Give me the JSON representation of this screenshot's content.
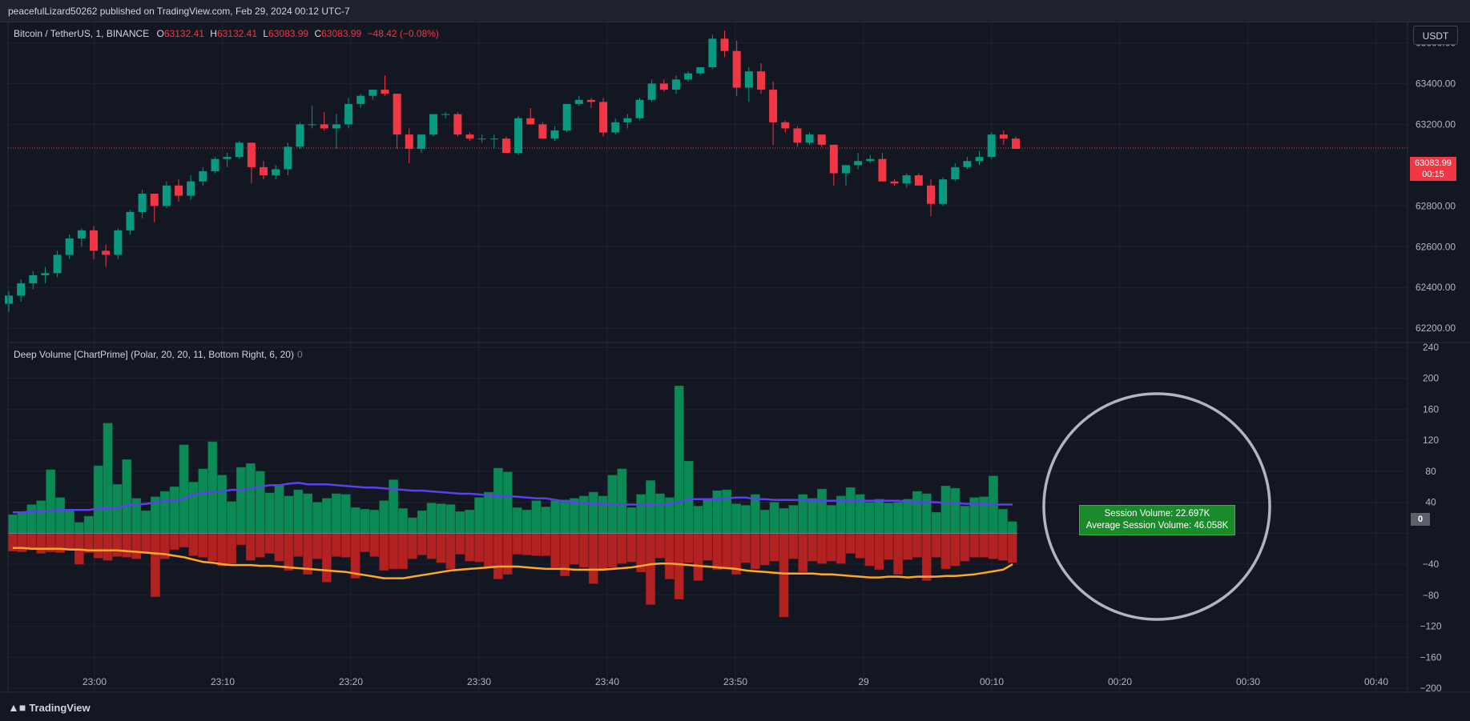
{
  "header": {
    "publisher_line": "peacefulLizard50262 published on TradingView.com, Feb 29, 2024 00:12 UTC-7"
  },
  "symbol_legend": {
    "symbol": "Bitcoin / TetherUS, 1, BINANCE",
    "open_label": "O",
    "open": "63132.41",
    "high_label": "H",
    "high": "63132.41",
    "low_label": "L",
    "low": "63083.99",
    "close_label": "C",
    "close": "63083.99",
    "change": "−48.42 (−0.08%)"
  },
  "indicator_legend": {
    "title": "Deep Volume [ChartPrime] (Polar, 20, 20, 11, Bottom Right, 6, 20)",
    "value": "0"
  },
  "currency_button": "USDT",
  "price_tag": {
    "price": "63083.99",
    "countdown": "00:15"
  },
  "zero_tag": "0",
  "session_box": {
    "line1": "Session Volume: 22.697K",
    "line2": "Average Session Volume: 46.058K"
  },
  "footer": {
    "brand": "TradingView",
    "logo_icon": "tradingview-logo-icon"
  },
  "colors": {
    "up": "#089981",
    "down": "#f23645",
    "background": "#131722",
    "buy_volume": "#0b8a55",
    "sell_volume": "#b22222",
    "buy_avg": "#5b3ff0",
    "sell_avg": "#ffa726"
  },
  "chart_data": [
    {
      "type": "candlestick",
      "title": "Bitcoin / TetherUS, 1, BINANCE",
      "price_axis": {
        "ticks": [
          "63600.00",
          "63400.00",
          "63200.00",
          "62800.00",
          "62600.00",
          "62400.00",
          "62200.00"
        ],
        "tick_values": [
          63600,
          63400,
          63200,
          62800,
          62600,
          62400,
          62200
        ],
        "range": [
          62130,
          63700
        ]
      },
      "time_axis": {
        "ticks": [
          "23:00",
          "23:10",
          "23:20",
          "23:30",
          "23:40",
          "23:50",
          "29",
          "00:10",
          "00:20",
          "00:30",
          "00:40"
        ]
      },
      "last_price": 63083.99,
      "candles_ohlc": [
        [
          62320,
          62380,
          62280,
          62360
        ],
        [
          62360,
          62440,
          62330,
          62420
        ],
        [
          62420,
          62480,
          62390,
          62460
        ],
        [
          62460,
          62500,
          62420,
          62470
        ],
        [
          62470,
          62580,
          62450,
          62560
        ],
        [
          62560,
          62660,
          62540,
          62640
        ],
        [
          62640,
          62690,
          62600,
          62680
        ],
        [
          62680,
          62700,
          62540,
          62580
        ],
        [
          62580,
          62610,
          62500,
          62560
        ],
        [
          62560,
          62690,
          62540,
          62680
        ],
        [
          62680,
          62780,
          62660,
          62770
        ],
        [
          62770,
          62880,
          62740,
          62860
        ],
        [
          62860,
          62840,
          62720,
          62800
        ],
        [
          62800,
          62920,
          62790,
          62900
        ],
        [
          62900,
          62930,
          62820,
          62850
        ],
        [
          62850,
          62950,
          62830,
          62920
        ],
        [
          62920,
          62990,
          62900,
          62970
        ],
        [
          62970,
          63040,
          62960,
          63030
        ],
        [
          63030,
          63060,
          62990,
          63040
        ],
        [
          63040,
          63120,
          63030,
          63110
        ],
        [
          63110,
          63110,
          62910,
          62990
        ],
        [
          62990,
          63020,
          62930,
          62950
        ],
        [
          62950,
          63000,
          62930,
          62980
        ],
        [
          62980,
          63110,
          62950,
          63090
        ],
        [
          63090,
          63210,
          63080,
          63200
        ],
        [
          63200,
          63290,
          63180,
          63200
        ],
        [
          63200,
          63260,
          63170,
          63180
        ],
        [
          63180,
          63250,
          63080,
          63200
        ],
        [
          63200,
          63330,
          63180,
          63300
        ],
        [
          63300,
          63350,
          63280,
          63340
        ],
        [
          63340,
          63370,
          63320,
          63370
        ],
        [
          63370,
          63440,
          63340,
          63350
        ],
        [
          63350,
          63350,
          63080,
          63150
        ],
        [
          63150,
          63180,
          63010,
          63080
        ],
        [
          63080,
          63150,
          63060,
          63150
        ],
        [
          63150,
          63250,
          63140,
          63250
        ],
        [
          63250,
          63260,
          63230,
          63250
        ],
        [
          63250,
          63260,
          63140,
          63150
        ],
        [
          63150,
          63160,
          63120,
          63130
        ],
        [
          63130,
          63150,
          63110,
          63130
        ],
        [
          63130,
          63150,
          63080,
          63130
        ],
        [
          63130,
          63140,
          63060,
          63060
        ],
        [
          63060,
          63240,
          63050,
          63230
        ],
        [
          63230,
          63280,
          63200,
          63200
        ],
        [
          63200,
          63210,
          63130,
          63130
        ],
        [
          63130,
          63190,
          63120,
          63170
        ],
        [
          63170,
          63300,
          63160,
          63300
        ],
        [
          63300,
          63340,
          63290,
          63320
        ],
        [
          63320,
          63330,
          63280,
          63310
        ],
        [
          63310,
          63330,
          63140,
          63160
        ],
        [
          63160,
          63230,
          63150,
          63210
        ],
        [
          63210,
          63250,
          63180,
          63230
        ],
        [
          63230,
          63330,
          63220,
          63320
        ],
        [
          63320,
          63420,
          63310,
          63400
        ],
        [
          63400,
          63420,
          63360,
          63370
        ],
        [
          63370,
          63440,
          63350,
          63420
        ],
        [
          63420,
          63460,
          63410,
          63450
        ],
        [
          63450,
          63480,
          63440,
          63480
        ],
        [
          63480,
          63640,
          63470,
          63620
        ],
        [
          63620,
          63660,
          63530,
          63560
        ],
        [
          63560,
          63610,
          63340,
          63380
        ],
        [
          63380,
          63480,
          63310,
          63460
        ],
        [
          63460,
          63500,
          63350,
          63370
        ],
        [
          63370,
          63410,
          63100,
          63210
        ],
        [
          63210,
          63220,
          63160,
          63180
        ],
        [
          63180,
          63190,
          63090,
          63110
        ],
        [
          63110,
          63160,
          63100,
          63150
        ],
        [
          63150,
          63150,
          63090,
          63100
        ],
        [
          63100,
          63100,
          62900,
          62960
        ],
        [
          62960,
          63000,
          62900,
          63000
        ],
        [
          63000,
          63060,
          62980,
          63020
        ],
        [
          63020,
          63050,
          63010,
          63030
        ],
        [
          63030,
          63060,
          62920,
          62920
        ],
        [
          62920,
          62930,
          62900,
          62910
        ],
        [
          62910,
          62960,
          62890,
          62950
        ],
        [
          62950,
          62960,
          62900,
          62900
        ],
        [
          62900,
          62930,
          62750,
          62810
        ],
        [
          62810,
          62940,
          62800,
          62930
        ],
        [
          62930,
          63010,
          62920,
          62990
        ],
        [
          62990,
          63040,
          62980,
          63020
        ],
        [
          63020,
          63070,
          63000,
          63040
        ],
        [
          63040,
          63160,
          63030,
          63150
        ],
        [
          63150,
          63170,
          63100,
          63130
        ],
        [
          63130,
          63140,
          63080,
          63080
        ]
      ]
    },
    {
      "type": "bar",
      "title": "Deep Volume [ChartPrime] (Polar, 20, 20, 11, Bottom Right, 6, 20)",
      "y_axis": {
        "ticks": [
          "240",
          "200",
          "160",
          "120",
          "80",
          "40",
          "0",
          "−40",
          "−80",
          "−120",
          "−160",
          "−200"
        ],
        "tick_values": [
          240,
          200,
          160,
          120,
          80,
          40,
          0,
          -40,
          -80,
          -120,
          -160,
          -200
        ],
        "range": [
          -205,
          245
        ]
      },
      "series": [
        {
          "name": "Buy Volume",
          "values": [
            24,
            26,
            37,
            42,
            82,
            46,
            29,
            14,
            22,
            87,
            142,
            63,
            95,
            45,
            29,
            47,
            54,
            60,
            114,
            66,
            83,
            118,
            75,
            41,
            85,
            90,
            80,
            52,
            62,
            48,
            56,
            51,
            40,
            45,
            51,
            50,
            33,
            31,
            30,
            42,
            69,
            32,
            20,
            29,
            39,
            38,
            37,
            28,
            30,
            46,
            53,
            84,
            79,
            33,
            30,
            42,
            34,
            42,
            43,
            45,
            48,
            53,
            48,
            75,
            83,
            33,
            50,
            68,
            51,
            46,
            190,
            93,
            35,
            45,
            55,
            56,
            38,
            36,
            50,
            30,
            40,
            32,
            36,
            50,
            45,
            57,
            36,
            48,
            59,
            50,
            40,
            44,
            39,
            40,
            44,
            54,
            51,
            27,
            61,
            58,
            35,
            46,
            47,
            74,
            31,
            15
          ]
        },
        {
          "name": "Sell Volume",
          "values": [
            -23,
            -24,
            -19,
            -26,
            -24,
            -25,
            -21,
            -40,
            -25,
            -32,
            -35,
            -30,
            -31,
            -33,
            -25,
            -82,
            -33,
            -21,
            -18,
            -29,
            -31,
            -36,
            -42,
            -39,
            -15,
            -35,
            -31,
            -26,
            -36,
            -48,
            -30,
            -53,
            -33,
            -63,
            -30,
            -31,
            -58,
            -24,
            -30,
            -48,
            -46,
            -46,
            -33,
            -28,
            -33,
            -38,
            -46,
            -27,
            -36,
            -37,
            -43,
            -59,
            -53,
            -27,
            -28,
            -29,
            -29,
            -44,
            -55,
            -40,
            -44,
            -65,
            -46,
            -44,
            -39,
            -37,
            -50,
            -92,
            -32,
            -59,
            -85,
            -38,
            -61,
            -35,
            -47,
            -45,
            -53,
            -38,
            -46,
            -41,
            -36,
            -108,
            -33,
            -50,
            -36,
            -39,
            -36,
            -39,
            -26,
            -32,
            -42,
            -47,
            -34,
            -53,
            -34,
            -31,
            -61,
            -31,
            -46,
            -42,
            -36,
            -31,
            -31,
            -33,
            -35,
            -38
          ]
        },
        {
          "name": "Buy Average",
          "values": [
            27,
            27,
            28,
            28,
            29,
            30,
            30,
            30,
            30,
            32,
            32,
            33,
            36,
            37,
            38,
            40,
            42,
            42,
            45,
            50,
            52,
            53,
            54,
            56,
            56,
            58,
            60,
            62,
            62,
            64,
            65,
            63,
            63,
            63,
            62,
            61,
            60,
            59,
            59,
            58,
            57,
            56,
            55,
            55,
            54,
            53,
            52,
            51,
            51,
            50,
            49,
            48,
            48,
            47,
            46,
            45,
            45,
            43,
            41,
            40,
            39,
            38,
            38,
            37,
            37,
            37,
            37,
            36,
            37,
            38,
            40,
            44,
            44,
            44,
            44,
            45,
            46,
            46,
            44,
            44,
            43,
            43,
            43,
            43,
            42,
            42,
            42,
            42,
            42,
            42,
            42,
            42,
            42,
            42,
            41,
            40,
            40,
            40,
            39,
            39,
            38,
            38,
            38,
            37,
            37,
            37
          ]
        },
        {
          "name": "Sell Average",
          "values": [
            -19,
            -19,
            -20,
            -20,
            -20,
            -20,
            -21,
            -21,
            -22,
            -22,
            -22,
            -22,
            -23,
            -24,
            -25,
            -26,
            -27,
            -29,
            -31,
            -34,
            -37,
            -38,
            -40,
            -41,
            -41,
            -41,
            -42,
            -42,
            -43,
            -44,
            -45,
            -46,
            -47,
            -48,
            -49,
            -50,
            -52,
            -54,
            -56,
            -58,
            -58,
            -58,
            -56,
            -54,
            -52,
            -50,
            -48,
            -47,
            -46,
            -45,
            -44,
            -43,
            -43,
            -43,
            -44,
            -45,
            -46,
            -46,
            -46,
            -47,
            -47,
            -47,
            -47,
            -46,
            -45,
            -44,
            -42,
            -40,
            -39,
            -39,
            -40,
            -41,
            -42,
            -43,
            -44,
            -45,
            -46,
            -48,
            -49,
            -50,
            -51,
            -52,
            -52,
            -52,
            -52,
            -53,
            -53,
            -54,
            -55,
            -56,
            -57,
            -57,
            -56,
            -56,
            -57,
            -56,
            -56,
            -56,
            -55,
            -55,
            -54,
            -53,
            -51,
            -49,
            -47,
            -40
          ]
        }
      ]
    }
  ]
}
